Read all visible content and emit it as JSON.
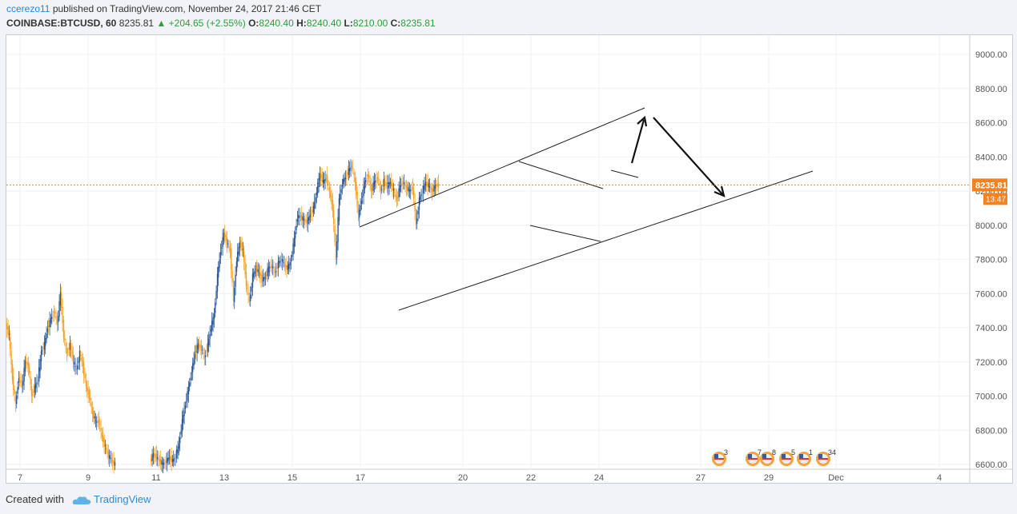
{
  "header": {
    "author": "ccerezo11",
    "published_text": " published on TradingView.com, November 24, 2017 21:46 CET",
    "symbol": "COINBASE:BTCUSD, 60",
    "last": "8235.81",
    "change": "▲ +204.65 (+2.55%)",
    "o_label": "O:",
    "o_value": "8240.40",
    "h_label": "H:",
    "h_value": "8240.40",
    "l_label": "L:",
    "l_value": "8210.00",
    "c_label": "C:",
    "c_value": "8235.81"
  },
  "footer": {
    "created_with": "Created with",
    "brand": "TradingView"
  },
  "colors": {
    "up": "#2a5898",
    "down": "#f5a227",
    "price_line": "#f58220",
    "grid": "#eef0f3"
  },
  "chart_data": {
    "type": "candlestick",
    "symbol": "COINBASE:BTCUSD",
    "interval": "60",
    "ylim": [
      6560,
      9120
    ],
    "y_ticks": [
      "9000.00",
      "8800.00",
      "8600.00",
      "8400.00",
      "8200.00",
      "8000.00",
      "7800.00",
      "7600.00",
      "7400.00",
      "7200.00",
      "7000.00",
      "6800.00",
      "6600.00"
    ],
    "x_ticks": [
      "7",
      "9",
      "11",
      "13",
      "15",
      "17",
      "20",
      "22",
      "24",
      "27",
      "29",
      "Dec",
      "4"
    ],
    "current_price_label": "8235.81",
    "countdown_label": "13:47",
    "series": [
      {
        "name": "",
        "path_points": [
          [
            0,
            7420
          ],
          [
            4,
            7350
          ],
          [
            8,
            7100
          ],
          [
            12,
            6950
          ],
          [
            16,
            7120
          ],
          [
            20,
            7050
          ],
          [
            24,
            7200
          ],
          [
            28,
            7180
          ],
          [
            32,
            7000
          ],
          [
            36,
            7050
          ],
          [
            40,
            7100
          ],
          [
            44,
            7260
          ],
          [
            48,
            7300
          ],
          [
            52,
            7400
          ],
          [
            56,
            7450
          ],
          [
            60,
            7500
          ],
          [
            64,
            7420
          ],
          [
            68,
            7600
          ],
          [
            72,
            7350
          ],
          [
            76,
            7250
          ],
          [
            80,
            7300
          ],
          [
            84,
            7200
          ],
          [
            88,
            7150
          ],
          [
            92,
            7250
          ],
          [
            96,
            7180
          ],
          [
            100,
            7050
          ],
          [
            104,
            7000
          ],
          [
            108,
            6900
          ],
          [
            112,
            6850
          ],
          [
            116,
            6850
          ],
          [
            120,
            6760
          ],
          [
            124,
            6700
          ],
          [
            128,
            6650
          ],
          [
            132,
            6620
          ],
          [
            136,
            6600
          ],
          [
            180,
            6620
          ],
          [
            184,
            6660
          ],
          [
            188,
            6640
          ],
          [
            192,
            6620
          ],
          [
            196,
            6600
          ],
          [
            200,
            6620
          ],
          [
            204,
            6640
          ],
          [
            208,
            6620
          ],
          [
            212,
            6650
          ],
          [
            216,
            6720
          ],
          [
            220,
            6850
          ],
          [
            224,
            6950
          ],
          [
            228,
            7050
          ],
          [
            232,
            7150
          ],
          [
            236,
            7250
          ],
          [
            240,
            7300
          ],
          [
            244,
            7280
          ],
          [
            248,
            7220
          ],
          [
            252,
            7300
          ],
          [
            256,
            7400
          ],
          [
            260,
            7480
          ],
          [
            264,
            7700
          ],
          [
            268,
            7850
          ],
          [
            272,
            7950
          ],
          [
            276,
            7900
          ],
          [
            280,
            7850
          ],
          [
            284,
            7550
          ],
          [
            288,
            7800
          ],
          [
            292,
            7900
          ],
          [
            296,
            7850
          ],
          [
            300,
            7650
          ],
          [
            304,
            7550
          ],
          [
            308,
            7700
          ],
          [
            312,
            7750
          ],
          [
            316,
            7720
          ],
          [
            320,
            7680
          ],
          [
            324,
            7700
          ],
          [
            328,
            7750
          ],
          [
            332,
            7760
          ],
          [
            336,
            7720
          ],
          [
            340,
            7780
          ],
          [
            344,
            7800
          ],
          [
            348,
            7760
          ],
          [
            352,
            7750
          ],
          [
            356,
            7800
          ],
          [
            360,
            7920
          ],
          [
            364,
            8050
          ],
          [
            368,
            8050
          ],
          [
            372,
            8030
          ],
          [
            376,
            8020
          ],
          [
            380,
            8060
          ],
          [
            384,
            8100
          ],
          [
            388,
            8200
          ],
          [
            392,
            8300
          ],
          [
            396,
            8250
          ],
          [
            400,
            8280
          ],
          [
            404,
            8200
          ],
          [
            408,
            8100
          ],
          [
            412,
            7800
          ],
          [
            416,
            8150
          ],
          [
            420,
            8250
          ],
          [
            424,
            8280
          ],
          [
            428,
            8320
          ],
          [
            432,
            8350
          ],
          [
            436,
            8250
          ],
          [
            440,
            8050
          ],
          [
            444,
            8150
          ],
          [
            448,
            8250
          ],
          [
            452,
            8300
          ],
          [
            456,
            8200
          ],
          [
            460,
            8250
          ],
          [
            464,
            8280
          ],
          [
            468,
            8200
          ],
          [
            472,
            8260
          ],
          [
            476,
            8230
          ],
          [
            480,
            8250
          ],
          [
            484,
            8200
          ],
          [
            488,
            8150
          ],
          [
            492,
            8230
          ],
          [
            496,
            8250
          ],
          [
            500,
            8220
          ],
          [
            504,
            8200
          ],
          [
            508,
            8220
          ],
          [
            512,
            8000
          ],
          [
            516,
            8150
          ],
          [
            520,
            8200
          ],
          [
            524,
            8250
          ],
          [
            528,
            8230
          ],
          [
            532,
            8200
          ],
          [
            536,
            8230
          ],
          [
            540,
            8235.81
          ]
        ]
      }
    ],
    "annotations": {
      "channel_upper": [
        [
          7980,
          "Nov 17"
        ],
        [
          8680,
          "Nov 25"
        ]
      ],
      "channel_lower": [
        [
          7500,
          "Nov 18"
        ],
        [
          8310,
          "Nov 30"
        ]
      ]
    },
    "markers": [
      {
        "label": "3"
      },
      {
        "label": "7"
      },
      {
        "label": "8"
      },
      {
        "label": "5"
      },
      {
        "label": "1"
      },
      {
        "label": "34"
      }
    ]
  }
}
